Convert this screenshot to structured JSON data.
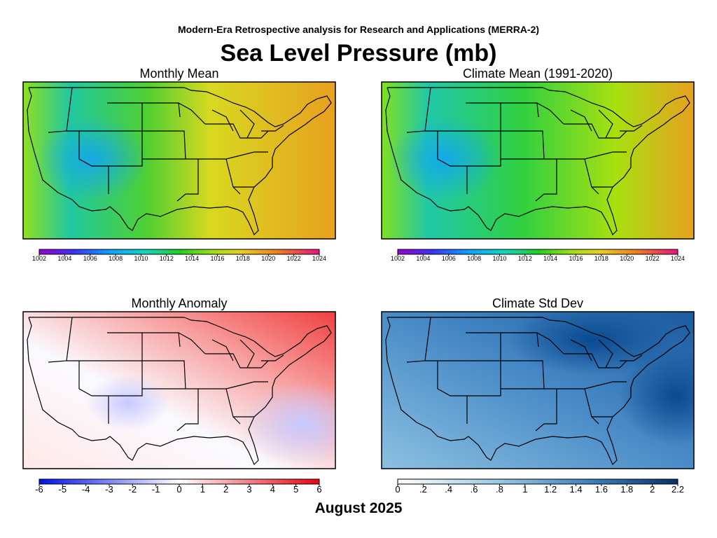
{
  "header": {
    "subtitle": "Modern-Era Retrospective analysis for Research and Applications (MERRA-2)",
    "title": "Sea Level Pressure (mb)"
  },
  "panels": [
    {
      "title": "Monthly Mean",
      "colorbar": [
        "1002",
        "1004",
        "1006",
        "1008",
        "1010",
        "1012",
        "1014",
        "1016",
        "1018",
        "1020",
        "1022",
        "1024"
      ]
    },
    {
      "title": "Climate Mean (1991-2020)",
      "colorbar": [
        "1002",
        "1004",
        "1006",
        "1008",
        "1010",
        "1012",
        "1014",
        "1016",
        "1018",
        "1020",
        "1022",
        "1024"
      ]
    },
    {
      "title": "Monthly Anomaly",
      "colorbar": [
        "-6",
        "-5",
        "-4",
        "-3",
        "-2",
        "-1",
        "0",
        "1",
        "2",
        "3",
        "4",
        "5",
        "6"
      ]
    },
    {
      "title": "Climate Std Dev",
      "colorbar": [
        "0",
        ".2",
        ".4",
        ".6",
        ".8",
        "1",
        "1.2",
        "1.4",
        "1.6",
        "1.8",
        "2",
        "2.2"
      ]
    }
  ],
  "footer": {
    "date": "August 2025"
  }
}
